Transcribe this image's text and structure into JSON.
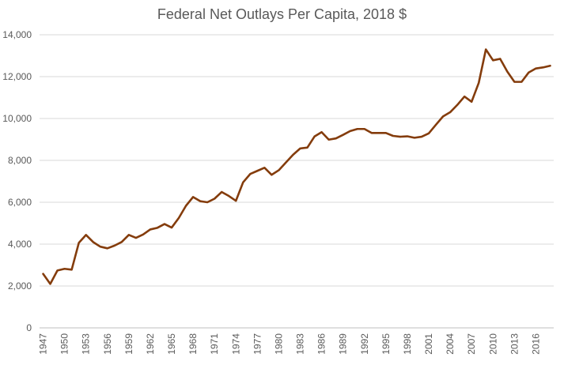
{
  "chart_data": {
    "type": "line",
    "title": "Federal Net Outlays Per Capita, 2018 $",
    "xlabel": "",
    "ylabel": "",
    "ylim": [
      0,
      14000
    ],
    "y_ticks": [
      0,
      2000,
      4000,
      6000,
      8000,
      10000,
      12000,
      14000
    ],
    "y_tick_labels": [
      "0",
      "2,000",
      "4,000",
      "6,000",
      "8,000",
      "10,000",
      "12,000",
      "14,000"
    ],
    "x_tick_labels": [
      "1947",
      "1950",
      "1953",
      "1956",
      "1959",
      "1962",
      "1965",
      "1968",
      "1971",
      "1974",
      "1977",
      "1980",
      "1983",
      "1986",
      "1989",
      "1992",
      "1995",
      "1998",
      "2001",
      "2004",
      "2007",
      "2010",
      "2013",
      "2016"
    ],
    "grid": true,
    "legend": "none",
    "series": [
      {
        "name": "Federal Net Outlays Per Capita",
        "color": "#843C0C",
        "x": [
          1947,
          1948,
          1949,
          1950,
          1951,
          1952,
          1953,
          1954,
          1955,
          1956,
          1957,
          1958,
          1959,
          1960,
          1961,
          1962,
          1963,
          1964,
          1965,
          1966,
          1967,
          1968,
          1969,
          1970,
          1971,
          1972,
          1973,
          1974,
          1975,
          1976,
          1977,
          1978,
          1979,
          1980,
          1981,
          1982,
          1983,
          1984,
          1985,
          1986,
          1987,
          1988,
          1989,
          1990,
          1991,
          1992,
          1993,
          1994,
          1995,
          1996,
          1997,
          1998,
          1999,
          2000,
          2001,
          2002,
          2003,
          2004,
          2005,
          2006,
          2007,
          2008,
          2009,
          2010,
          2011,
          2012,
          2013,
          2014,
          2015,
          2016,
          2017,
          2018
        ],
        "values": [
          2580,
          2100,
          2740,
          2820,
          2780,
          4060,
          4440,
          4100,
          3880,
          3800,
          3930,
          4100,
          4440,
          4300,
          4460,
          4700,
          4780,
          4960,
          4790,
          5250,
          5830,
          6250,
          6050,
          6000,
          6170,
          6490,
          6300,
          6070,
          6950,
          7350,
          7500,
          7650,
          7310,
          7530,
          7900,
          8270,
          8570,
          8610,
          9140,
          9350,
          8990,
          9050,
          9220,
          9400,
          9500,
          9500,
          9310,
          9310,
          9310,
          9170,
          9130,
          9150,
          9080,
          9130,
          9290,
          9700,
          10100,
          10300,
          10650,
          11050,
          10800,
          11700,
          13300,
          12780,
          12850,
          12240,
          11750,
          11750,
          12200,
          12390,
          12440,
          12520
        ]
      }
    ]
  }
}
